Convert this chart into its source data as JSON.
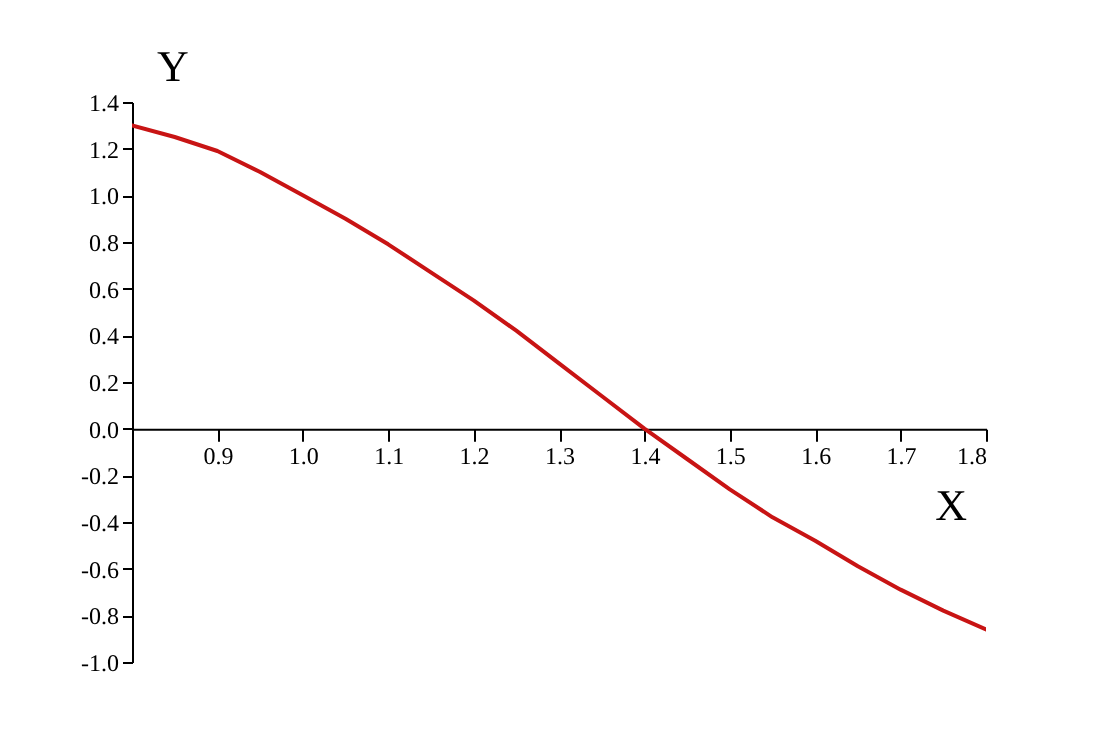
{
  "chart_data": {
    "type": "line",
    "xlabel": "X",
    "ylabel": "Y",
    "xlim": [
      0.8,
      1.8
    ],
    "ylim": [
      -1.0,
      1.4
    ],
    "xticks": [
      {
        "value": 0.9,
        "label": "0.9"
      },
      {
        "value": 1.0,
        "label": "1.0"
      },
      {
        "value": 1.1,
        "label": "1.1"
      },
      {
        "value": 1.2,
        "label": "1.2"
      },
      {
        "value": 1.3,
        "label": "1.3"
      },
      {
        "value": 1.4,
        "label": "1.4"
      },
      {
        "value": 1.5,
        "label": "1.5"
      },
      {
        "value": 1.6,
        "label": "1.6"
      },
      {
        "value": 1.7,
        "label": "1.7"
      },
      {
        "value": 1.8,
        "label": "1.8"
      }
    ],
    "yticks": [
      {
        "value": -1.0,
        "label": "-1.0"
      },
      {
        "value": -0.8,
        "label": "-0.8"
      },
      {
        "value": -0.6,
        "label": "-0.6"
      },
      {
        "value": -0.4,
        "label": "-0.4"
      },
      {
        "value": -0.2,
        "label": "-0.2"
      },
      {
        "value": 0.0,
        "label": "0.0"
      },
      {
        "value": 0.2,
        "label": "0.2"
      },
      {
        "value": 0.4,
        "label": "0.4"
      },
      {
        "value": 0.6,
        "label": "0.6"
      },
      {
        "value": 0.8,
        "label": "0.8"
      },
      {
        "value": 1.0,
        "label": "1.0"
      },
      {
        "value": 1.2,
        "label": "1.2"
      },
      {
        "value": 1.4,
        "label": "1.4"
      }
    ],
    "x": [
      0.8,
      0.85,
      0.9,
      0.95,
      1.0,
      1.05,
      1.1,
      1.15,
      1.2,
      1.25,
      1.3,
      1.35,
      1.4,
      1.45,
      1.5,
      1.55,
      1.6,
      1.65,
      1.7,
      1.75,
      1.8
    ],
    "series": [
      {
        "color": "#c81414",
        "values": [
          1.3,
          1.25,
          1.19,
          1.1,
          1.0,
          0.9,
          0.79,
          0.67,
          0.55,
          0.42,
          0.28,
          0.14,
          0.0,
          -0.13,
          -0.26,
          -0.38,
          -0.48,
          -0.59,
          -0.69,
          -0.78,
          -0.86
        ]
      }
    ],
    "grid": false,
    "marker": "none",
    "line_style": "solid"
  }
}
